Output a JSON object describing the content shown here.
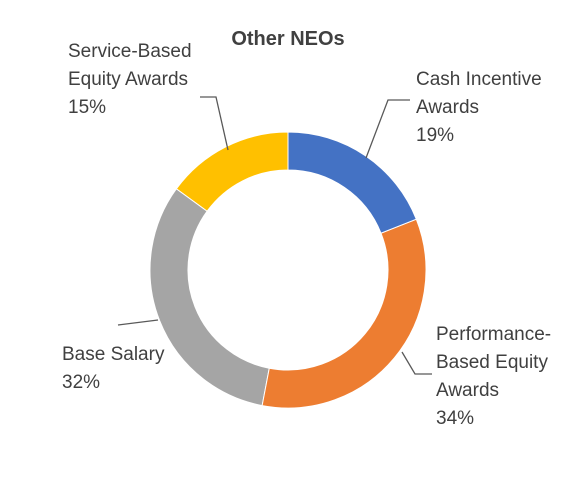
{
  "chart_data": {
    "type": "donut",
    "title": "Other NEOs",
    "categories": [
      "Cash Incentive Awards",
      "Performance-Based Equity Awards",
      "Base Salary",
      "Service-Based Equity Awards"
    ],
    "values": [
      19,
      34,
      32,
      15
    ],
    "value_labels": [
      "19%",
      "34%",
      "32%",
      "15%"
    ],
    "colors": [
      "#4472c4",
      "#ed7d31",
      "#a5a5a5",
      "#ffc000"
    ]
  }
}
